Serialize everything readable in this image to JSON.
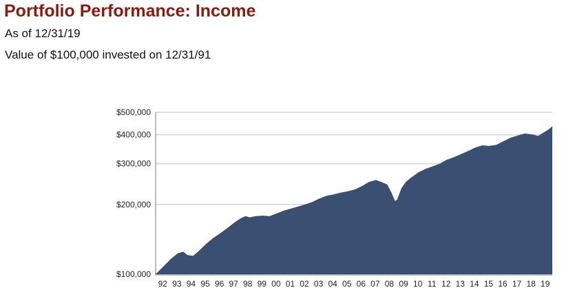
{
  "header": {
    "title": "Portfolio Performance: Income",
    "as_of": "As of 12/31/19",
    "subtitle": "Value of $100,000 invested on 12/31/91"
  },
  "colors": {
    "title": "#8b1a10",
    "area_fill": "#3b4f72",
    "grid": "#d4d4d4",
    "axis": "#777777"
  },
  "chart_data": {
    "type": "area",
    "title": "Portfolio Performance: Income",
    "subtitle": "Value of $100,000 invested on 12/31/91",
    "y_scale": "log",
    "ylim": [
      100000,
      500000
    ],
    "xlim": [
      1991.95,
      2019.95
    ],
    "grid": true,
    "y_ticks": [
      {
        "value": 100000,
        "label": "$100,000"
      },
      {
        "value": 200000,
        "label": "$200,000"
      },
      {
        "value": 300000,
        "label": "$300,000"
      },
      {
        "value": 400000,
        "label": "$400,000"
      },
      {
        "value": 500000,
        "label": "$500,000"
      }
    ],
    "x_ticks": [
      {
        "value": 1992.45,
        "label": "92"
      },
      {
        "value": 1993.45,
        "label": "93"
      },
      {
        "value": 1994.45,
        "label": "94"
      },
      {
        "value": 1995.45,
        "label": "95"
      },
      {
        "value": 1996.45,
        "label": "96"
      },
      {
        "value": 1997.45,
        "label": "97"
      },
      {
        "value": 1998.45,
        "label": "98"
      },
      {
        "value": 1999.45,
        "label": "99"
      },
      {
        "value": 2000.45,
        "label": "00"
      },
      {
        "value": 2001.45,
        "label": "01"
      },
      {
        "value": 2002.45,
        "label": "02"
      },
      {
        "value": 2003.45,
        "label": "03"
      },
      {
        "value": 2004.45,
        "label": "04"
      },
      {
        "value": 2005.45,
        "label": "05"
      },
      {
        "value": 2006.45,
        "label": "06"
      },
      {
        "value": 2007.45,
        "label": "07"
      },
      {
        "value": 2008.45,
        "label": "08"
      },
      {
        "value": 2009.45,
        "label": "09"
      },
      {
        "value": 2010.45,
        "label": "10"
      },
      {
        "value": 2011.45,
        "label": "11"
      },
      {
        "value": 2012.45,
        "label": "12"
      },
      {
        "value": 2013.45,
        "label": "13"
      },
      {
        "value": 2014.45,
        "label": "14"
      },
      {
        "value": 2015.45,
        "label": "15"
      },
      {
        "value": 2016.45,
        "label": "16"
      },
      {
        "value": 2017.45,
        "label": "17"
      },
      {
        "value": 2018.45,
        "label": "18"
      },
      {
        "value": 2019.45,
        "label": "19"
      }
    ],
    "series": [
      {
        "x": [
          1991.95,
          1992.5,
          1993.0,
          1993.5,
          1993.9,
          1994.2,
          1994.6,
          1995.0,
          1995.5,
          1996.0,
          1996.5,
          1997.0,
          1997.5,
          1998.0,
          1998.3,
          1998.6,
          1999.0,
          1999.5,
          2000.0,
          2000.5,
          2001.0,
          2001.5,
          2002.0,
          2002.5,
          2003.0,
          2003.5,
          2004.0,
          2004.5,
          2005.0,
          2005.5,
          2006.0,
          2006.5,
          2007.0,
          2007.5,
          2007.9,
          2008.3,
          2008.6,
          2008.85,
          2009.0,
          2009.3,
          2009.6,
          2010.0,
          2010.5,
          2011.0,
          2011.5,
          2012.0,
          2012.5,
          2013.0,
          2013.5,
          2014.0,
          2014.5,
          2015.0,
          2015.5,
          2016.0,
          2016.5,
          2017.0,
          2017.5,
          2018.0,
          2018.5,
          2018.95,
          2019.3,
          2019.7,
          2019.95
        ],
        "values": [
          100000,
          108000,
          116000,
          123000,
          125000,
          121000,
          120000,
          126000,
          135000,
          143000,
          150000,
          158000,
          167000,
          175000,
          178000,
          176000,
          178000,
          179000,
          178000,
          183000,
          188000,
          192000,
          196000,
          200000,
          205000,
          212000,
          218000,
          221000,
          225000,
          228000,
          232000,
          240000,
          250000,
          255000,
          250000,
          244000,
          225000,
          207000,
          210000,
          235000,
          250000,
          262000,
          275000,
          285000,
          292000,
          300000,
          312000,
          320000,
          330000,
          340000,
          352000,
          360000,
          358000,
          362000,
          375000,
          388000,
          397000,
          405000,
          402000,
          395000,
          408000,
          422000,
          435000
        ]
      }
    ]
  }
}
